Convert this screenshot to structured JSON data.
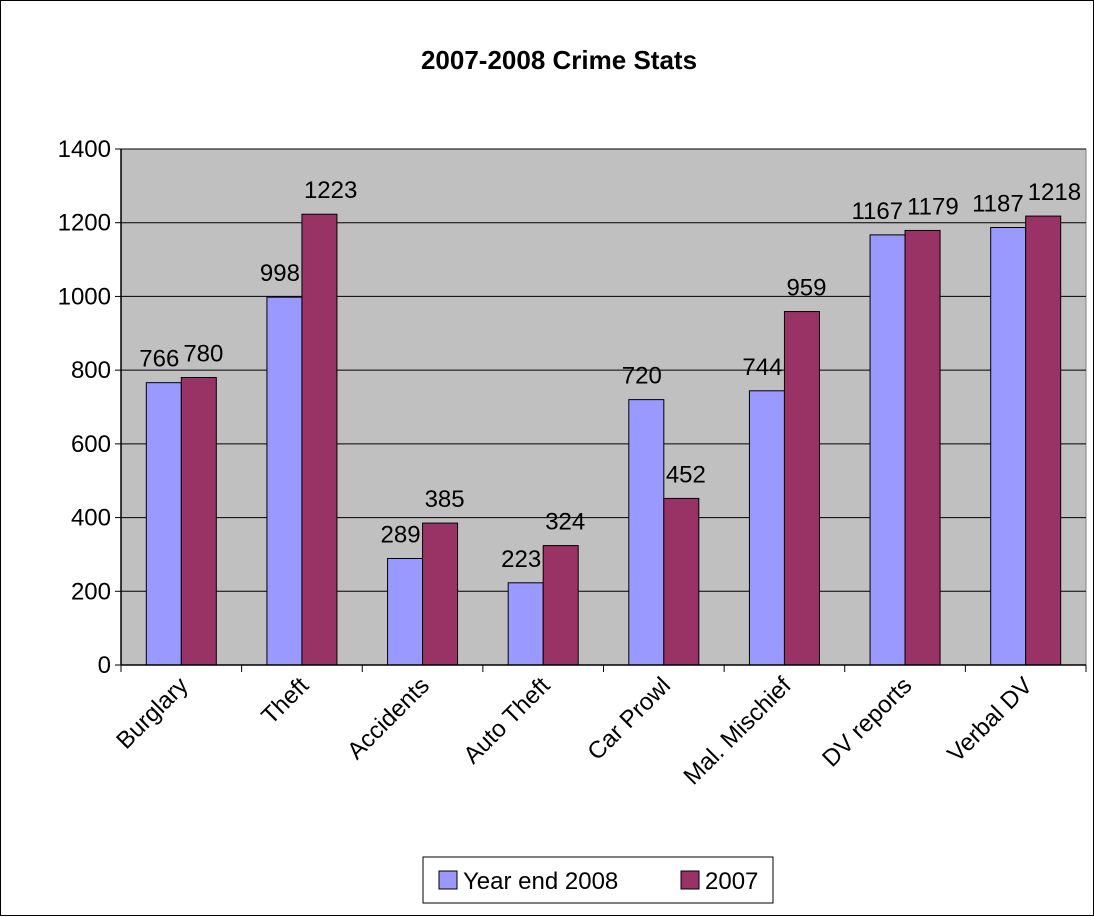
{
  "chart_data": {
    "type": "bar",
    "title": "2007-2008 Crime Stats",
    "xlabel": "",
    "ylabel": "",
    "ylim": [
      0,
      1400
    ],
    "yticks": [
      0,
      200,
      400,
      600,
      800,
      1000,
      1200,
      1400
    ],
    "grid": true,
    "legend_position": "bottom",
    "categories": [
      "Burglary",
      "Theft",
      "Accidents",
      "Auto Theft",
      "Car Prowl",
      "Mal. Mischief",
      "DV reports",
      "Verbal DV"
    ],
    "series": [
      {
        "name": "Year end 2008",
        "color": "#9999ff",
        "values": [
          766,
          998,
          289,
          223,
          720,
          744,
          1167,
          1187
        ]
      },
      {
        "name": "2007",
        "color": "#993366",
        "values": [
          780,
          1223,
          385,
          324,
          452,
          959,
          1179,
          1218
        ]
      }
    ],
    "plot_background": "#c0c0c0"
  }
}
